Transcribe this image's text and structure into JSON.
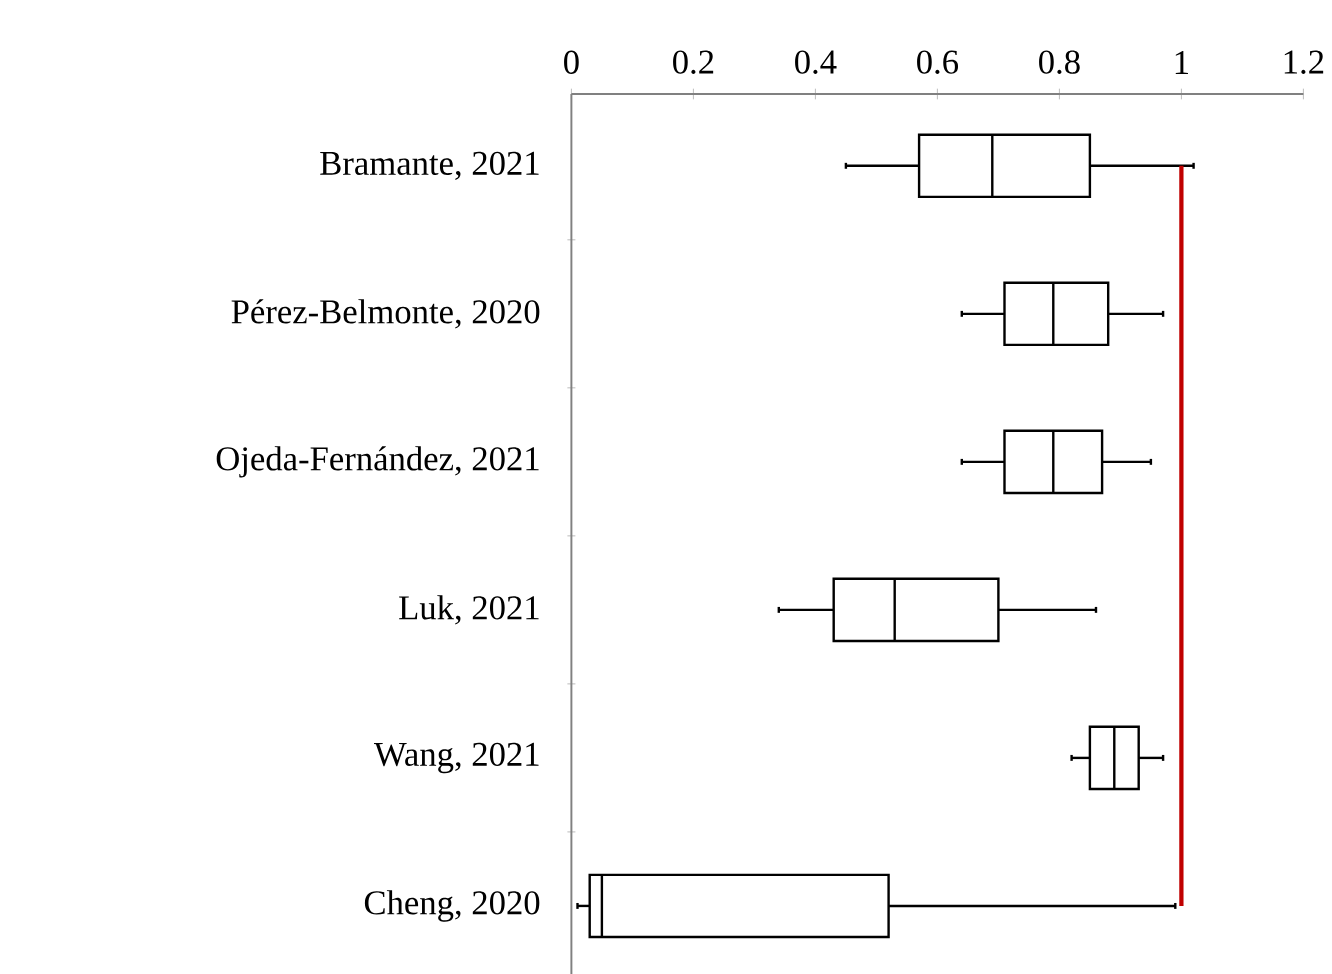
{
  "chart_data": {
    "type": "box",
    "orientation": "horizontal",
    "categories": [
      "Bramante, 2021",
      "Pérez-Belmonte, 2020",
      "Ojeda-Fernández, 2021",
      "Luk, 2021",
      "Wang, 2021",
      "Cheng, 2020"
    ],
    "boxes": [
      {
        "low": 0.45,
        "q1": 0.57,
        "median": 0.69,
        "q3": 0.85,
        "high": 1.02
      },
      {
        "low": 0.64,
        "q1": 0.71,
        "median": 0.79,
        "q3": 0.88,
        "high": 0.97
      },
      {
        "low": 0.64,
        "q1": 0.71,
        "median": 0.79,
        "q3": 0.87,
        "high": 0.95
      },
      {
        "low": 0.34,
        "q1": 0.43,
        "median": 0.53,
        "q3": 0.7,
        "high": 0.86
      },
      {
        "low": 0.82,
        "q1": 0.85,
        "median": 0.89,
        "q3": 0.93,
        "high": 0.97
      },
      {
        "low": 0.01,
        "q1": 0.03,
        "median": 0.05,
        "q3": 0.52,
        "high": 0.99
      }
    ],
    "xlim": [
      0,
      1.2
    ],
    "xticks": [
      0,
      0.2,
      0.4,
      0.6,
      0.8,
      1,
      1.2
    ],
    "ref_lines": [
      {
        "axis": "x",
        "value": 1,
        "color": "#c00000"
      }
    ]
  }
}
